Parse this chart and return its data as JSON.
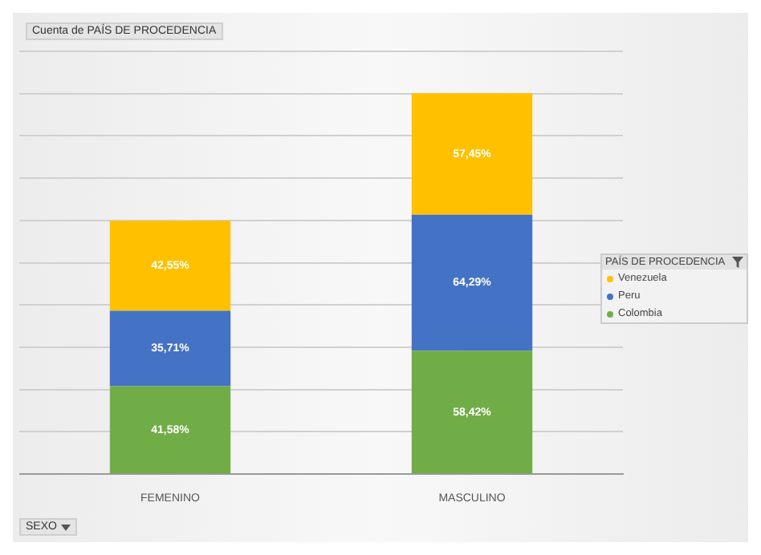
{
  "chart_data": {
    "type": "bar",
    "title": "Cuenta de PAÍS DE PROCEDENCIA",
    "legend_title": "PAÍS DE PROCEDENCIA",
    "categories": [
      "FEMENINO",
      "MASCULINO"
    ],
    "stacked": true,
    "series": [
      {
        "name": "Colombia",
        "color": "#70ad47",
        "values": [
          41.58,
          58.42
        ],
        "value_labels": [
          "41,58%",
          "58,42%"
        ]
      },
      {
        "name": "Peru",
        "color": "#4472c4",
        "values": [
          35.71,
          64.29
        ],
        "value_labels": [
          "35,71%",
          "64,29%"
        ]
      },
      {
        "name": "Venezuela",
        "color": "#ffc000",
        "values": [
          42.55,
          57.45
        ],
        "value_labels": [
          "42,55%",
          "57,45%"
        ]
      }
    ],
    "ylim": [
      0,
      200
    ],
    "yticks": [
      {
        "value": 0,
        "label": null
      },
      {
        "value": 20,
        "label": null
      },
      {
        "value": 40,
        "label": null
      },
      {
        "value": 60,
        "label": null
      },
      {
        "value": 80,
        "label": null
      },
      {
        "value": 100,
        "label": null
      },
      {
        "value": 120,
        "label": null
      },
      {
        "value": 140,
        "label": null
      },
      {
        "value": 160,
        "label": null
      },
      {
        "value": 180,
        "label": null
      },
      {
        "value": 200,
        "label": null
      }
    ],
    "tick_labels": "x",
    "grid": "y",
    "legend": "right",
    "annotations": [
      "SEXO"
    ]
  }
}
